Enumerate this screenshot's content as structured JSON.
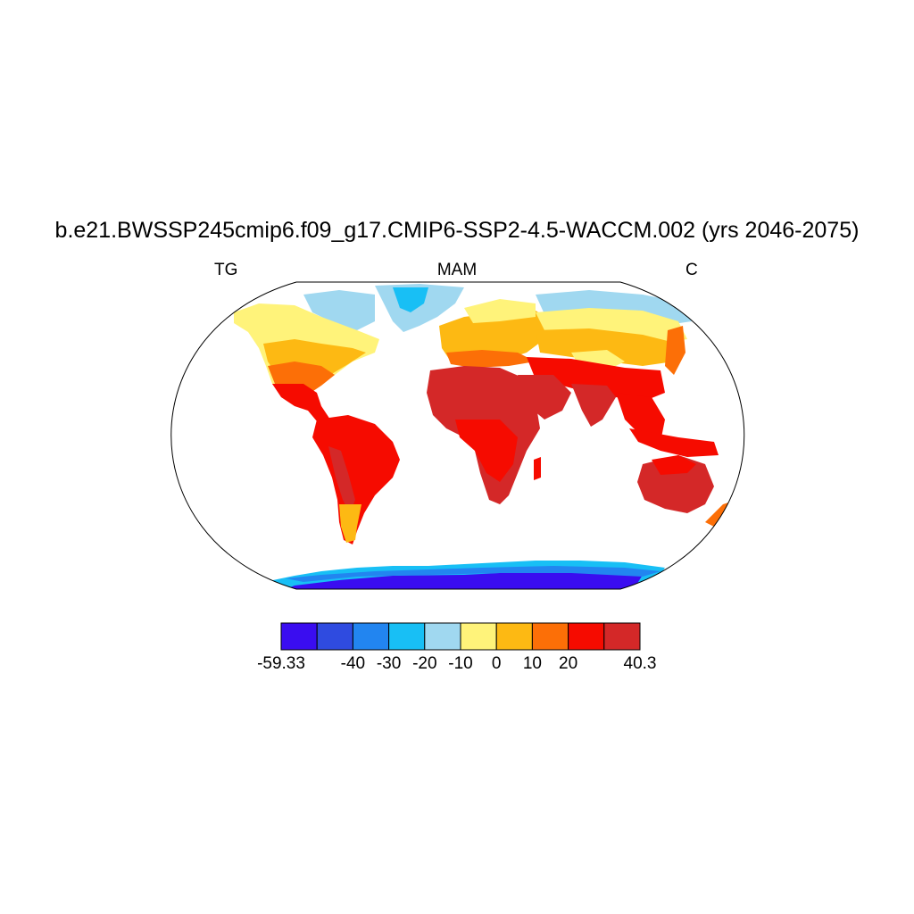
{
  "title": "b.e21.BWSSP245cmip6.f09_g17.CMIP6-SSP2-4.5-WACCM.002 (yrs 2046-2075)",
  "subtitle_left": "TG",
  "subtitle_center": "MAM",
  "subtitle_right": "C",
  "colorbar": {
    "colors": [
      "#3a0df0",
      "#2f4be0",
      "#2285f0",
      "#18bff5",
      "#a0d8f0",
      "#fff37a",
      "#fdb913",
      "#fc6f07",
      "#f60b00",
      "#d42828"
    ],
    "labels": [
      "-59.33",
      "-40",
      "-30",
      "-20",
      "-10",
      "0",
      "10",
      "20",
      "40.3"
    ],
    "boundaries": [
      -59.33,
      -50,
      -40,
      -30,
      -20,
      -10,
      0,
      10,
      20,
      30,
      40.3
    ]
  }
}
